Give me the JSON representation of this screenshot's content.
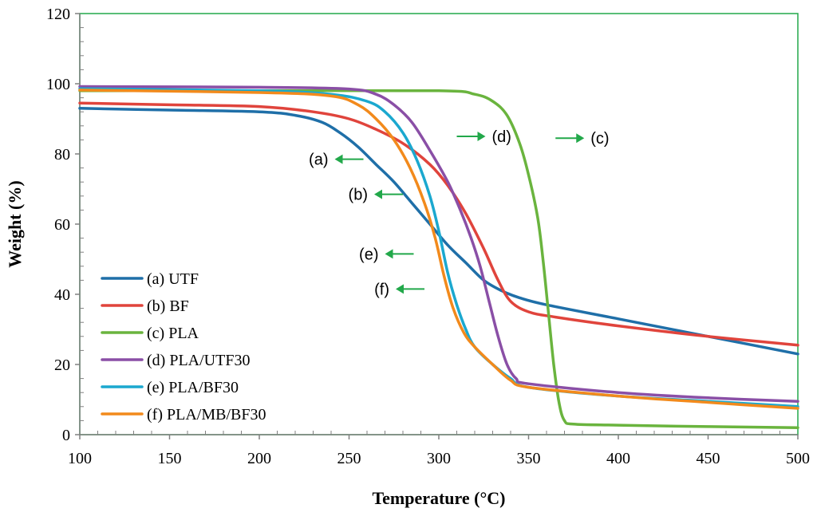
{
  "chart_data": {
    "type": "line",
    "title": "",
    "xlabel": "Temperature  (°C)",
    "ylabel": "Weight (%)",
    "xlim": [
      100,
      500
    ],
    "ylim": [
      0,
      120
    ],
    "x_ticks": [
      "100",
      "150",
      "200",
      "250",
      "300",
      "350",
      "400",
      "450",
      "500"
    ],
    "y_ticks": [
      "0",
      "20",
      "40",
      "60",
      "80",
      "100",
      "120"
    ],
    "grid": false,
    "legend_position": "bottom-left",
    "colors": {
      "axis": "#808080",
      "frame": "#22a84a",
      "arrow": "#22a84a"
    },
    "series": [
      {
        "name": "(a) UTF",
        "color": "#1f6fa8",
        "points": [
          [
            100,
            93
          ],
          [
            150,
            92.5
          ],
          [
            200,
            92
          ],
          [
            220,
            91
          ],
          [
            235,
            89
          ],
          [
            245,
            86
          ],
          [
            255,
            82
          ],
          [
            265,
            77
          ],
          [
            275,
            72
          ],
          [
            285,
            66
          ],
          [
            295,
            60
          ],
          [
            305,
            54
          ],
          [
            315,
            49
          ],
          [
            325,
            44
          ],
          [
            335,
            41
          ],
          [
            345,
            39
          ],
          [
            360,
            37
          ],
          [
            400,
            33
          ],
          [
            450,
            28
          ],
          [
            500,
            23
          ]
        ]
      },
      {
        "name": "(b) BF",
        "color": "#e0443c",
        "points": [
          [
            100,
            94.5
          ],
          [
            150,
            94
          ],
          [
            200,
            93.5
          ],
          [
            230,
            92
          ],
          [
            250,
            90
          ],
          [
            265,
            87
          ],
          [
            280,
            83
          ],
          [
            295,
            77
          ],
          [
            305,
            71
          ],
          [
            315,
            63
          ],
          [
            325,
            53
          ],
          [
            333,
            44
          ],
          [
            340,
            38
          ],
          [
            350,
            35
          ],
          [
            365,
            33.5
          ],
          [
            400,
            31
          ],
          [
            450,
            28
          ],
          [
            500,
            25.5
          ]
        ]
      },
      {
        "name": "(c) PLA",
        "color": "#6ab43e",
        "points": [
          [
            100,
            98
          ],
          [
            200,
            98
          ],
          [
            300,
            98
          ],
          [
            320,
            97
          ],
          [
            330,
            95
          ],
          [
            338,
            91
          ],
          [
            345,
            83
          ],
          [
            350,
            74
          ],
          [
            355,
            62
          ],
          [
            358,
            50
          ],
          [
            361,
            35
          ],
          [
            364,
            20
          ],
          [
            367,
            9
          ],
          [
            370,
            4
          ],
          [
            375,
            3
          ],
          [
            400,
            2.7
          ],
          [
            450,
            2.3
          ],
          [
            500,
            2
          ]
        ]
      },
      {
        "name": "(d) PLA/UTF30",
        "color": "#8a4fa6",
        "points": [
          [
            100,
            99.2
          ],
          [
            200,
            99
          ],
          [
            250,
            98.5
          ],
          [
            265,
            97
          ],
          [
            275,
            94
          ],
          [
            285,
            89
          ],
          [
            295,
            81
          ],
          [
            305,
            72
          ],
          [
            312,
            64
          ],
          [
            318,
            56
          ],
          [
            323,
            48
          ],
          [
            328,
            38
          ],
          [
            333,
            28
          ],
          [
            338,
            20
          ],
          [
            343,
            16
          ],
          [
            350,
            14.5
          ],
          [
            400,
            12
          ],
          [
            450,
            10.5
          ],
          [
            500,
            9.5
          ]
        ]
      },
      {
        "name": "(e) PLA/BF30",
        "color": "#1ba8cf",
        "points": [
          [
            100,
            98.6
          ],
          [
            200,
            98
          ],
          [
            240,
            97
          ],
          [
            260,
            95
          ],
          [
            270,
            92
          ],
          [
            280,
            86
          ],
          [
            288,
            78
          ],
          [
            295,
            68
          ],
          [
            300,
            58
          ],
          [
            305,
            46
          ],
          [
            310,
            37
          ],
          [
            315,
            30
          ],
          [
            320,
            25
          ],
          [
            330,
            20
          ],
          [
            340,
            16
          ],
          [
            350,
            13.5
          ],
          [
            400,
            11
          ],
          [
            450,
            9.5
          ],
          [
            500,
            8
          ]
        ]
      },
      {
        "name": "(f) PLA/MB/BF30",
        "color": "#f28a1c",
        "points": [
          [
            100,
            98.2
          ],
          [
            200,
            97.5
          ],
          [
            240,
            96.5
          ],
          [
            255,
            94
          ],
          [
            265,
            90
          ],
          [
            275,
            84
          ],
          [
            284,
            76
          ],
          [
            292,
            66
          ],
          [
            298,
            56
          ],
          [
            303,
            45
          ],
          [
            308,
            36
          ],
          [
            314,
            29
          ],
          [
            320,
            25
          ],
          [
            330,
            20
          ],
          [
            340,
            15.5
          ],
          [
            350,
            13.5
          ],
          [
            400,
            11
          ],
          [
            450,
            9.2
          ],
          [
            500,
            7.5
          ]
        ]
      }
    ],
    "annotations": [
      {
        "label": "(a)",
        "x": 258,
        "y": 78.5,
        "arrow": "left"
      },
      {
        "label": "(b)",
        "x": 280,
        "y": 68.5,
        "arrow": "left"
      },
      {
        "label": "(c)",
        "x": 365,
        "y": 84.5,
        "arrow": "right"
      },
      {
        "label": "(d)",
        "x": 310,
        "y": 85,
        "arrow": "right"
      },
      {
        "label": "(e)",
        "x": 286,
        "y": 51.5,
        "arrow": "left"
      },
      {
        "label": "(f)",
        "x": 292,
        "y": 41.5,
        "arrow": "left"
      }
    ]
  }
}
